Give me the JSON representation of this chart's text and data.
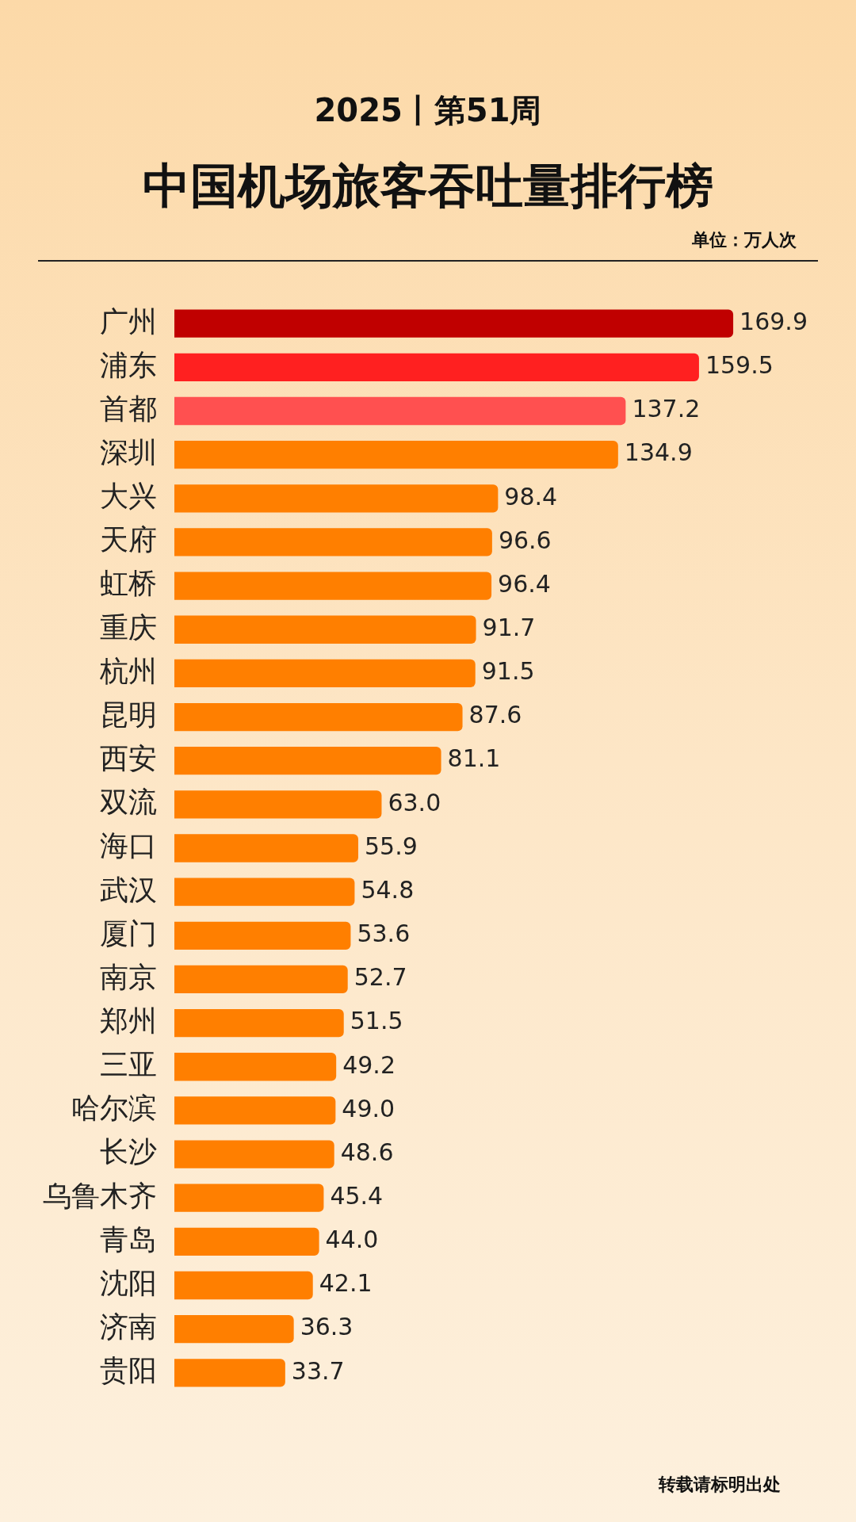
{
  "chart_data": {
    "type": "bar",
    "orientation": "horizontal",
    "subtitle": "2025丨第51周",
    "title": "中国机场旅客吞吐量排行榜",
    "annotations": [
      "单位：万人次",
      "转载请标明出处"
    ],
    "categories": [
      "广州",
      "浦东",
      "首都",
      "深圳",
      "大兴",
      "天府",
      "虹桥",
      "重庆",
      "杭州",
      "昆明",
      "西安",
      "双流",
      "海口",
      "武汉",
      "厦门",
      "南京",
      "郑州",
      "三亚",
      "哈尔滨",
      "长沙",
      "乌鲁木齐",
      "青岛",
      "沈阳",
      "济南",
      "贵阳"
    ],
    "values": [
      169.9,
      159.5,
      137.2,
      134.9,
      98.4,
      96.6,
      96.4,
      91.7,
      91.5,
      87.6,
      81.1,
      63.0,
      55.9,
      54.8,
      53.6,
      52.7,
      51.5,
      49.2,
      49.0,
      48.6,
      45.4,
      44.0,
      42.1,
      36.3,
      33.7
    ],
    "colors": [
      "#c00000",
      "#ff2020",
      "#ff5050",
      "#ff7f00",
      "#ff7f00",
      "#ff7f00",
      "#ff7f00",
      "#ff7f00",
      "#ff7f00",
      "#ff7f00",
      "#ff7f00",
      "#ff7f00",
      "#ff7f00",
      "#ff7f00",
      "#ff7f00",
      "#ff7f00",
      "#ff7f00",
      "#ff7f00",
      "#ff7f00",
      "#ff7f00",
      "#ff7f00",
      "#ff7f00",
      "#ff7f00",
      "#ff7f00",
      "#ff7f00"
    ],
    "value_labels": [
      "169.9",
      "159.5",
      "137.2",
      "134.9",
      "98.4",
      "96.6",
      "96.4",
      "91.7",
      "91.5",
      "87.6",
      "81.1",
      "63.0",
      "55.9",
      "54.8",
      "53.6",
      "52.7",
      "51.5",
      "49.2",
      "49.0",
      "48.6",
      "45.4",
      "44.0",
      "42.1",
      "36.3",
      "33.7"
    ],
    "legend": false
  }
}
